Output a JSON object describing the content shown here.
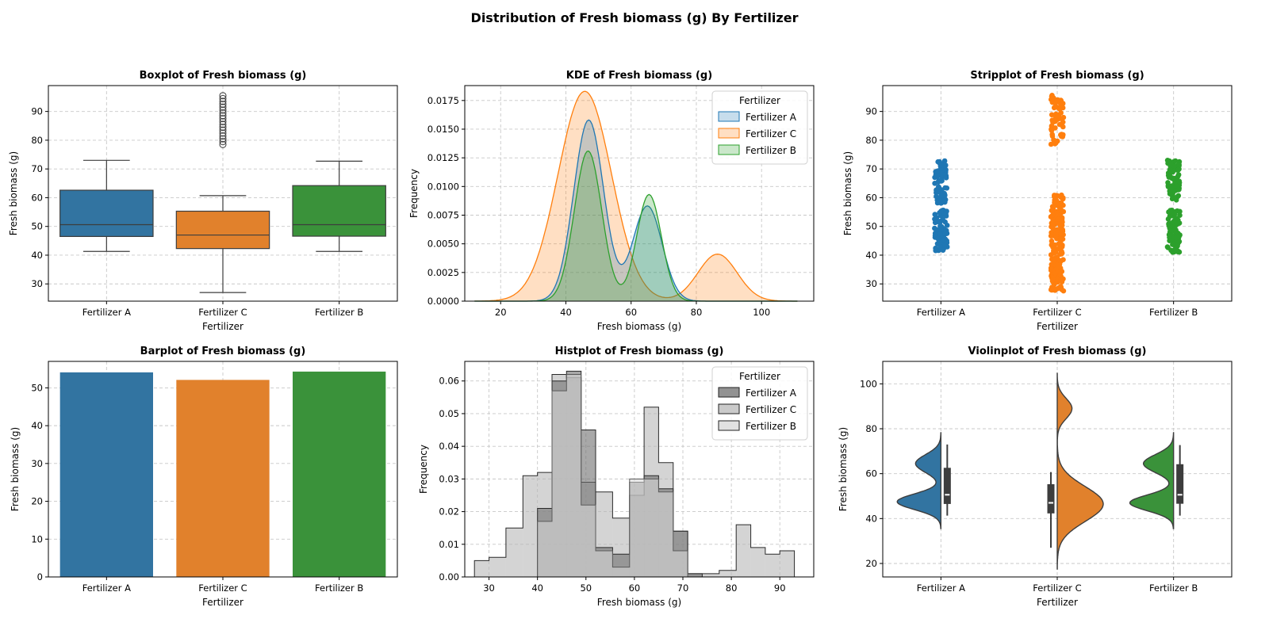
{
  "figure": {
    "title": "Distribution of Fresh biomass (g) By Fertilizer"
  },
  "colors": {
    "Fertilizer A": "#1f77b4",
    "Fertilizer C": "#ff7f0e",
    "Fertilizer B": "#2ca02c",
    "box_A": "#3274a1",
    "box_C": "#e1812c",
    "box_B": "#3a923a"
  },
  "chart_data": [
    {
      "id": "box",
      "type": "box",
      "title": "Boxplot of Fresh biomass (g)",
      "xlabel": "Fertilizer",
      "ylabel": "Fresh biomass (g)",
      "categories": [
        "Fertilizer A",
        "Fertilizer C",
        "Fertilizer B"
      ],
      "ylim": [
        24,
        99
      ],
      "yticks": [
        30,
        40,
        50,
        60,
        70,
        80,
        90
      ],
      "boxes": [
        {
          "name": "Fertilizer A",
          "whisker_low": 41.3,
          "q1": 46.5,
          "median": 50.6,
          "q3": 62.6,
          "whisker_high": 73.0,
          "outliers": []
        },
        {
          "name": "Fertilizer C",
          "whisker_low": 27.0,
          "q1": 42.3,
          "median": 47.0,
          "q3": 55.3,
          "whisker_high": 60.7,
          "outliers": [
            78.5,
            79.5,
            80.5,
            81.5,
            82.5,
            83.5,
            84.5,
            85.5,
            86.5,
            87.5,
            88.5,
            89.5,
            90.5,
            91.5,
            92.5,
            93.5,
            94.5,
            95.5
          ]
        },
        {
          "name": "Fertilizer B",
          "whisker_low": 41.3,
          "q1": 46.6,
          "median": 50.6,
          "q3": 64.2,
          "whisker_high": 72.7,
          "outliers": []
        }
      ]
    },
    {
      "id": "kde",
      "type": "area",
      "title": "KDE of Fresh biomass (g)",
      "xlabel": "Fresh biomass (g)",
      "ylabel": "Frequency",
      "xlim": [
        9,
        116
      ],
      "ylim": [
        0,
        0.0188
      ],
      "xticks": [
        20,
        40,
        60,
        80,
        100
      ],
      "yticks": [
        0.0,
        0.0025,
        0.005,
        0.0075,
        0.01,
        0.0125,
        0.015,
        0.0175
      ],
      "ytick_labels": [
        "0.0000",
        "0.0025",
        "0.0050",
        "0.0075",
        "0.0100",
        "0.0125",
        "0.0150",
        "0.0175"
      ],
      "legend": {
        "title": "Fertilizer",
        "placement": "upper right",
        "entries": [
          "Fertilizer A",
          "Fertilizer C",
          "Fertilizer B"
        ]
      },
      "series": [
        {
          "name": "Fertilizer A",
          "components": [
            {
              "mu": 47.0,
              "sigma": 4.6,
              "amp": 0.0158
            },
            {
              "mu": 65.0,
              "sigma": 4.5,
              "amp": 0.0083
            }
          ]
        },
        {
          "name": "Fertilizer C",
          "components": [
            {
              "mu": 45.8,
              "sigma": 8.2,
              "amp": 0.0183
            },
            {
              "mu": 86.5,
              "sigma": 6.0,
              "amp": 0.0041
            }
          ]
        },
        {
          "name": "Fertilizer B",
          "components": [
            {
              "mu": 46.8,
              "sigma": 4.2,
              "amp": 0.0131
            },
            {
              "mu": 65.5,
              "sigma": 3.8,
              "amp": 0.0093
            }
          ]
        }
      ]
    },
    {
      "id": "strip",
      "type": "scatter",
      "title": "Stripplot of Fresh biomass (g)",
      "xlabel": "Fertilizer",
      "ylabel": "Fresh biomass (g)",
      "categories": [
        "Fertilizer A",
        "Fertilizer C",
        "Fertilizer B"
      ],
      "ylim": [
        24,
        99
      ],
      "yticks": [
        30,
        40,
        50,
        60,
        70,
        80,
        90
      ],
      "clusters": [
        {
          "name": "Fertilizer A",
          "ranges": [
            [
              41.5,
              56.0,
              90
            ],
            [
              58.0,
              73.0,
              70
            ]
          ]
        },
        {
          "name": "Fertilizer C",
          "ranges": [
            [
              27.5,
              61.0,
              190
            ],
            [
              78.5,
              96.0,
              55
            ]
          ]
        },
        {
          "name": "Fertilizer B",
          "ranges": [
            [
              41.0,
              56.0,
              90
            ],
            [
              59.0,
              73.0,
              70
            ]
          ]
        }
      ]
    },
    {
      "id": "bar",
      "type": "bar",
      "title": "Barplot of Fresh biomass (g)",
      "xlabel": "Fertilizer",
      "ylabel": "Fresh biomass (g)",
      "categories": [
        "Fertilizer A",
        "Fertilizer C",
        "Fertilizer B"
      ],
      "values": [
        54.1,
        52.1,
        54.3
      ],
      "ylim": [
        0,
        57
      ],
      "yticks": [
        0,
        10,
        20,
        30,
        40,
        50
      ]
    },
    {
      "id": "hist",
      "type": "bar",
      "title": "Histplot of Fresh biomass (g)",
      "xlabel": "Fresh biomass (g)",
      "ylabel": "Frequency",
      "xlim": [
        25,
        97
      ],
      "ylim": [
        0,
        0.066
      ],
      "xticks": [
        30,
        40,
        50,
        60,
        70,
        80,
        90
      ],
      "yticks": [
        0.0,
        0.01,
        0.02,
        0.03,
        0.04,
        0.05,
        0.06
      ],
      "ytick_labels": [
        "0.00",
        "0.01",
        "0.02",
        "0.03",
        "0.04",
        "0.05",
        "0.06"
      ],
      "legend": {
        "title": "Fertilizer",
        "placement": "upper right",
        "entries": [
          "Fertilizer A",
          "Fertilizer C",
          "Fertilizer B"
        ]
      },
      "series": [
        {
          "name": "Fertilizer C",
          "edges": [
            27,
            30,
            33.5,
            37,
            40,
            43,
            46,
            49,
            52,
            55.5,
            59,
            62,
            65,
            68,
            71,
            74,
            77.5,
            81,
            84,
            87,
            90,
            93,
            96
          ],
          "values": [
            0.005,
            0.006,
            0.015,
            0.031,
            0.032,
            0.062,
            0.061,
            0.029,
            0.026,
            0.018,
            0.025,
            0.052,
            0.035,
            0.014,
            0.001,
            0.001,
            0.002,
            0.016,
            0.009,
            0.007,
            0.008,
            0.0
          ]
        },
        {
          "name": "Fertilizer A",
          "edges": [
            40,
            43,
            46,
            49,
            52,
            55.5,
            59,
            62,
            65,
            68,
            71,
            74
          ],
          "values": [
            0.021,
            0.06,
            0.063,
            0.045,
            0.009,
            0.007,
            0.029,
            0.031,
            0.027,
            0.014,
            0.001
          ]
        },
        {
          "name": "Fertilizer B",
          "edges": [
            40,
            43,
            46,
            49,
            52,
            55.5,
            59,
            62,
            65,
            68,
            71,
            74
          ],
          "values": [
            0.017,
            0.057,
            0.062,
            0.022,
            0.008,
            0.003,
            0.03,
            0.03,
            0.026,
            0.008,
            0.0
          ]
        }
      ],
      "fills": {
        "Fertilizer A": "#6e6e6e",
        "Fertilizer C": "#b8b8b8",
        "Fertilizer B": "#d7d7d7"
      }
    },
    {
      "id": "violin",
      "type": "area",
      "title": "Violinplot of Fresh biomass (g)",
      "xlabel": "Fertilizer",
      "ylabel": "Fresh biomass (g)",
      "categories": [
        "Fertilizer A",
        "Fertilizer C",
        "Fertilizer B"
      ],
      "ylim": [
        14,
        110
      ],
      "yticks": [
        20,
        40,
        60,
        80,
        100
      ],
      "violins": [
        {
          "name": "Fertilizer A",
          "range": [
            35.5,
            78.5
          ],
          "components": [
            {
              "mu": 47.5,
              "sigma": 3.5,
              "amp": 1.0
            },
            {
              "mu": 64.5,
              "sigma": 4.0,
              "amp": 0.58
            }
          ],
          "box": {
            "whisker_low": 41.3,
            "q1": 46.5,
            "median": 50.6,
            "q3": 62.6,
            "whisker_high": 73.0
          }
        },
        {
          "name": "Fertilizer C",
          "range": [
            17.5,
            105.0
          ],
          "components": [
            {
              "mu": 46.5,
              "sigma": 7.8,
              "amp": 1.0
            },
            {
              "mu": 89.0,
              "sigma": 4.5,
              "amp": 0.32
            }
          ],
          "box": {
            "whisker_low": 27.0,
            "q1": 42.3,
            "median": 47.0,
            "q3": 55.3,
            "whisker_high": 60.7
          }
        },
        {
          "name": "Fertilizer B",
          "range": [
            35.5,
            78.5
          ],
          "components": [
            {
              "mu": 47.0,
              "sigma": 3.5,
              "amp": 0.9
            },
            {
              "mu": 64.5,
              "sigma": 4.0,
              "amp": 0.62
            }
          ],
          "box": {
            "whisker_low": 41.3,
            "q1": 46.6,
            "median": 50.6,
            "q3": 64.2,
            "whisker_high": 72.7
          }
        }
      ]
    }
  ]
}
